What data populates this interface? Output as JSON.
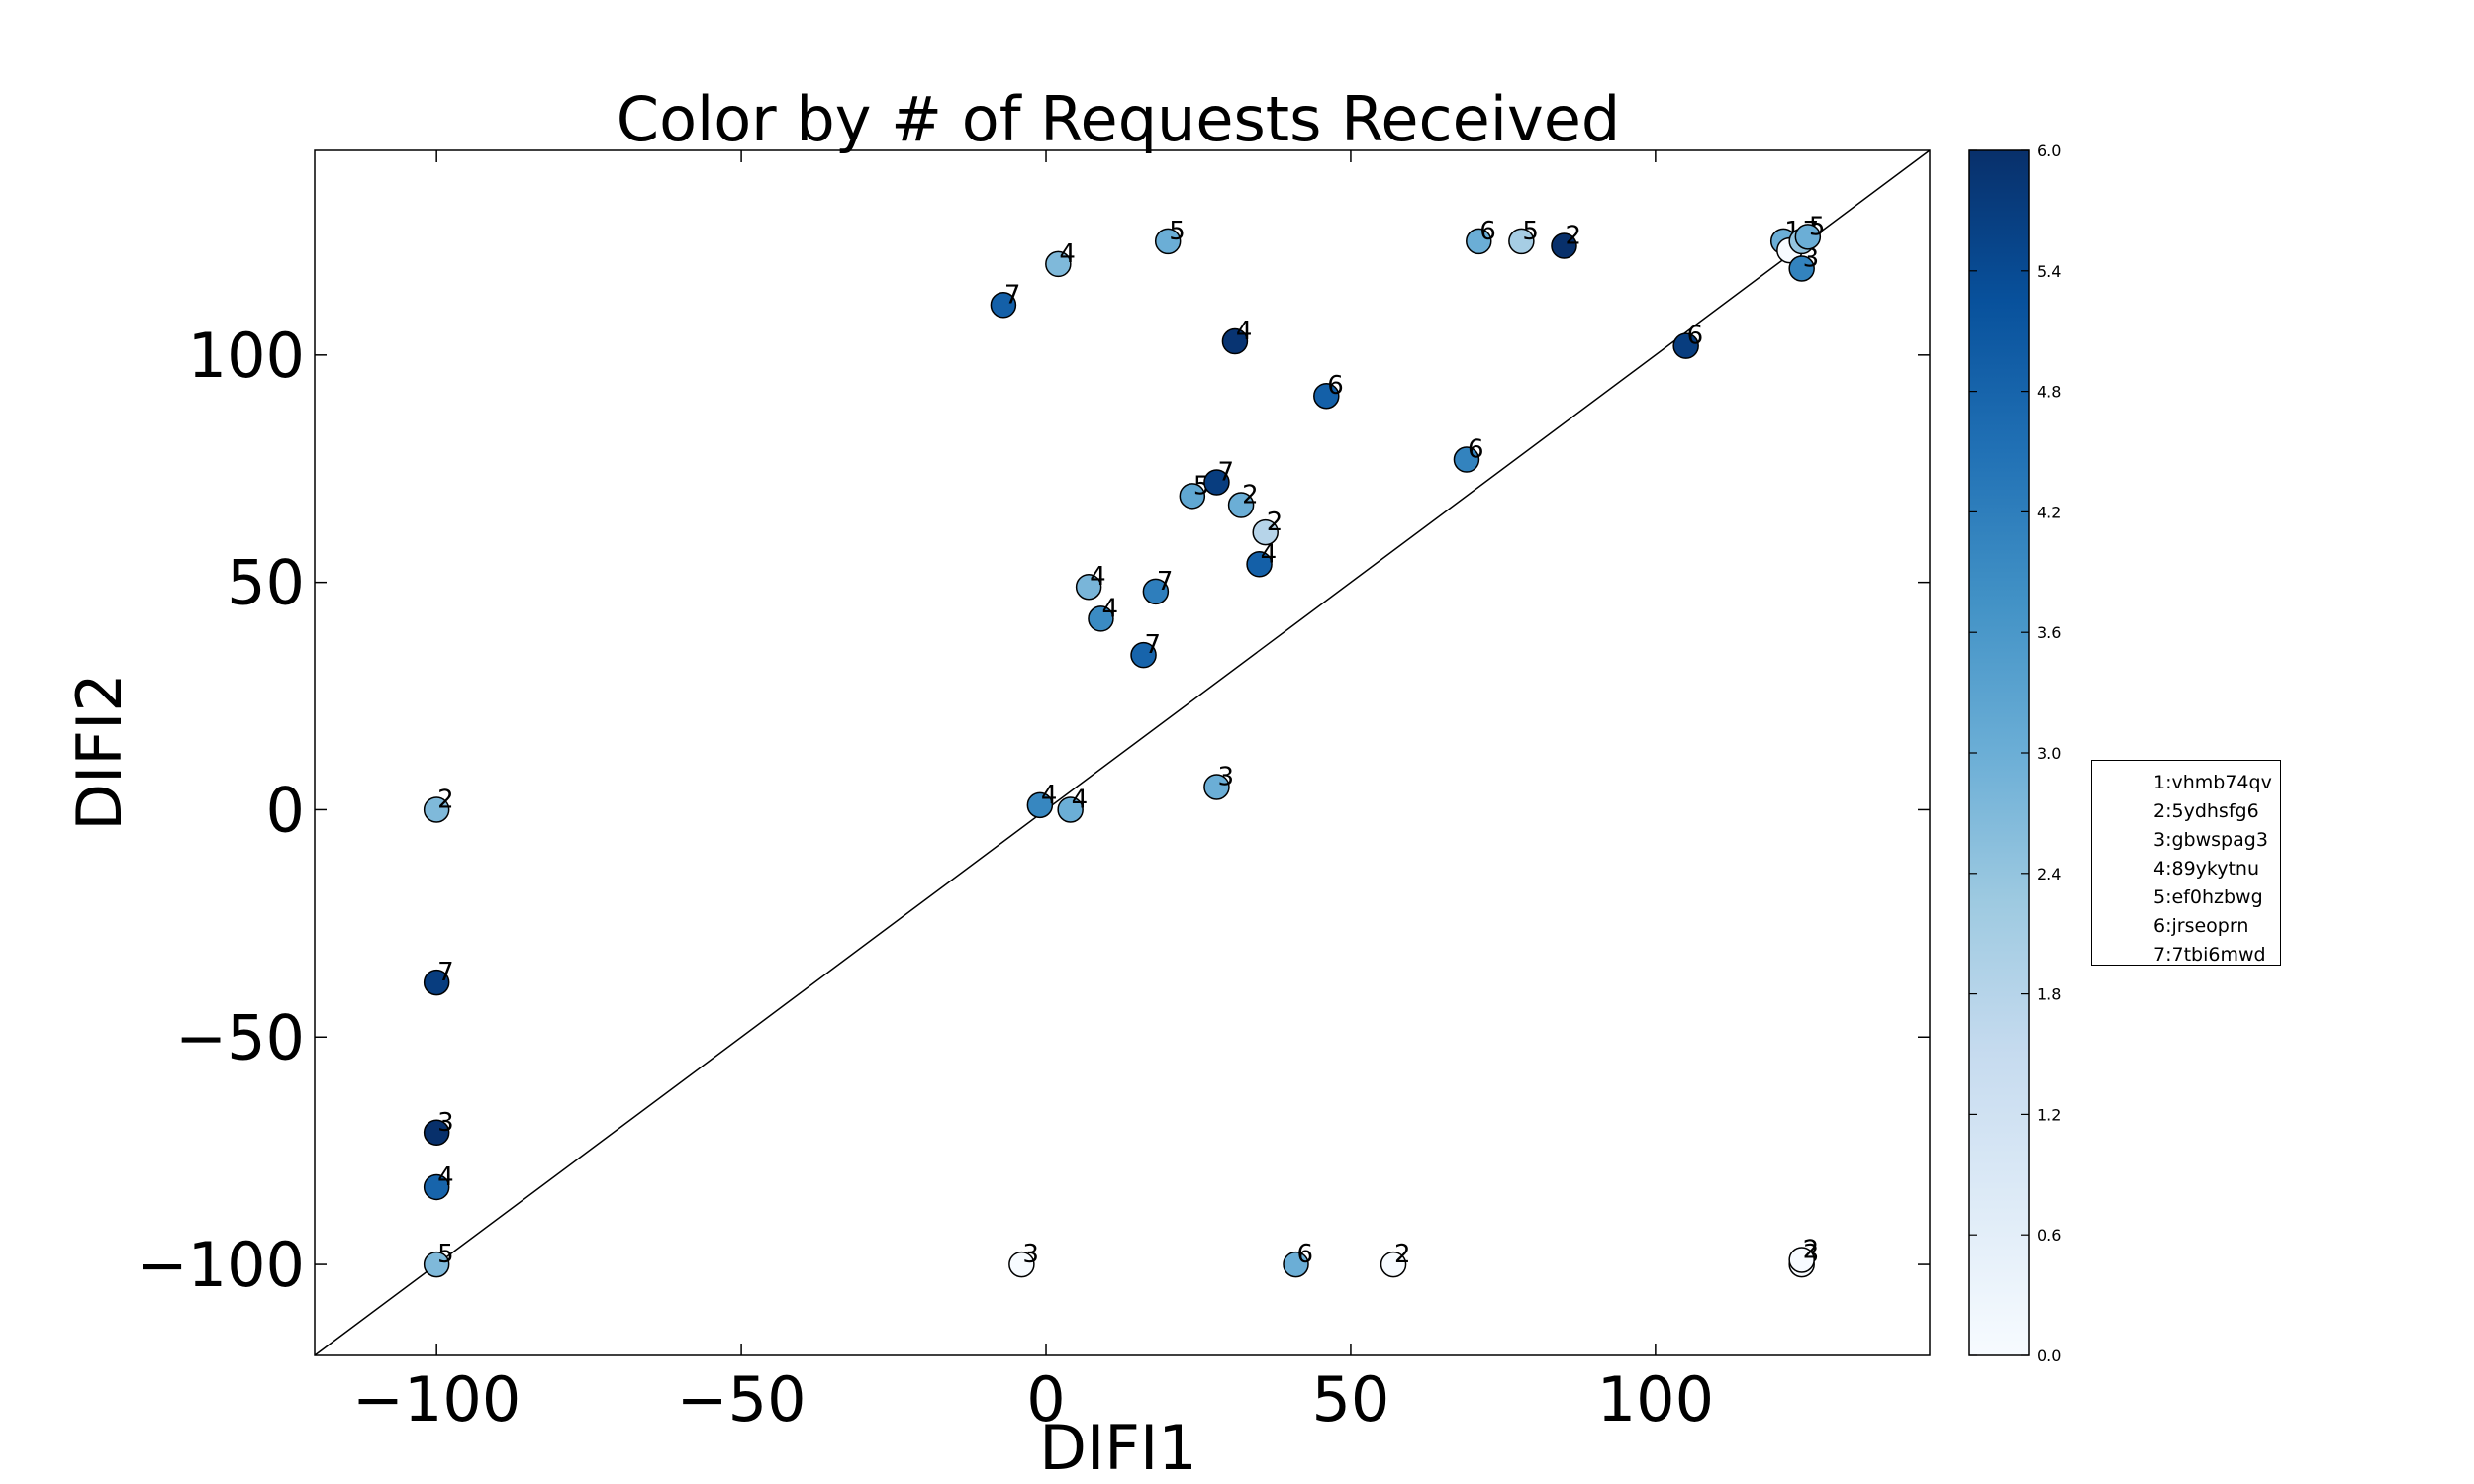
{
  "chart_data": {
    "type": "scatter",
    "title": "Color by # of Requests Received",
    "xlabel": "DIFI1",
    "ylabel": "DIFI2",
    "xlim": [
      -120,
      145
    ],
    "ylim": [
      -120,
      145
    ],
    "x_ticks": [
      -100,
      -50,
      0,
      50,
      100
    ],
    "x_tick_labels": [
      "−100",
      "−50",
      "0",
      "50",
      "100"
    ],
    "y_ticks": [
      -100,
      -50,
      0,
      50,
      100
    ],
    "y_tick_labels": [
      "−100",
      "−50",
      "0",
      "50",
      "100"
    ],
    "reference_line": "y = x",
    "grid": false,
    "colorbar": {
      "min": 0.0,
      "max": 6.0,
      "colormap": "Blues",
      "ticks": [
        0.0,
        0.6,
        1.2,
        1.8,
        2.4,
        3.0,
        3.6,
        4.2,
        4.8,
        5.4,
        6.0
      ],
      "tick_labels": [
        "0.0",
        "0.6",
        "1.2",
        "1.8",
        "2.4",
        "3.0",
        "3.6",
        "4.2",
        "4.8",
        "5.4",
        "6.0"
      ]
    },
    "legend": {
      "placement": "right",
      "entries": [
        "1:vhmb74qv",
        "2:5ydhsfg6",
        "3:gbwspag3",
        "4:89ykytnu",
        "5:ef0hzbwg",
        "6:jrseoprn",
        "7:7tbi6mwd"
      ]
    },
    "points": [
      {
        "x": -100,
        "y": 0,
        "label": "2",
        "c": 2.7
      },
      {
        "x": -100,
        "y": -38,
        "label": "7",
        "c": 5.7
      },
      {
        "x": -100,
        "y": -71,
        "label": "3",
        "c": 6.0
      },
      {
        "x": -100,
        "y": -83,
        "label": "4",
        "c": 4.8
      },
      {
        "x": -100,
        "y": -100,
        "label": "5",
        "c": 2.7
      },
      {
        "x": -4,
        "y": -100,
        "label": "3",
        "c": 0.0
      },
      {
        "x": 41,
        "y": -100,
        "label": "6",
        "c": 3.0
      },
      {
        "x": 57,
        "y": -100,
        "label": "2",
        "c": 0.0
      },
      {
        "x": 124,
        "y": -100,
        "label": "3",
        "c": 0.0
      },
      {
        "x": 124,
        "y": -99,
        "label": "2",
        "c": 0.0
      },
      {
        "x": -1,
        "y": 1,
        "label": "4",
        "c": 4.0
      },
      {
        "x": 4,
        "y": 0,
        "label": "4",
        "c": 3.0
      },
      {
        "x": 28,
        "y": 5,
        "label": "3",
        "c": 3.0
      },
      {
        "x": 16,
        "y": 34,
        "label": "7",
        "c": 4.8
      },
      {
        "x": 9,
        "y": 42,
        "label": "4",
        "c": 3.9
      },
      {
        "x": 7,
        "y": 49,
        "label": "4",
        "c": 2.8
      },
      {
        "x": 18,
        "y": 48,
        "label": "7",
        "c": 4.2
      },
      {
        "x": 35,
        "y": 54,
        "label": "4",
        "c": 4.9
      },
      {
        "x": 36,
        "y": 61,
        "label": "2",
        "c": 1.8
      },
      {
        "x": 32,
        "y": 67,
        "label": "2",
        "c": 3.0
      },
      {
        "x": 24,
        "y": 69,
        "label": "5",
        "c": 3.2
      },
      {
        "x": 28,
        "y": 72,
        "label": "7",
        "c": 5.7
      },
      {
        "x": 69,
        "y": 77,
        "label": "6",
        "c": 4.1
      },
      {
        "x": 46,
        "y": 91,
        "label": "6",
        "c": 4.9
      },
      {
        "x": 31,
        "y": 103,
        "label": "4",
        "c": 5.9
      },
      {
        "x": -7,
        "y": 111,
        "label": "7",
        "c": 4.9
      },
      {
        "x": 2,
        "y": 120,
        "label": "4",
        "c": 2.7
      },
      {
        "x": 20,
        "y": 125,
        "label": "5",
        "c": 3.0
      },
      {
        "x": 71,
        "y": 125,
        "label": "6",
        "c": 3.0
      },
      {
        "x": 78,
        "y": 125,
        "label": "5",
        "c": 2.1
      },
      {
        "x": 85,
        "y": 124,
        "label": "2",
        "c": 6.0
      },
      {
        "x": 105,
        "y": 102,
        "label": "6",
        "c": 5.7
      },
      {
        "x": 121,
        "y": 125,
        "label": "1",
        "c": 3.0
      },
      {
        "x": 122,
        "y": 123,
        "label": "6",
        "c": 0.0
      },
      {
        "x": 124,
        "y": 119,
        "label": "3",
        "c": 4.1
      },
      {
        "x": 124,
        "y": 125,
        "label": "7",
        "c": 2.4
      },
      {
        "x": 125,
        "y": 126,
        "label": "5",
        "c": 3.0
      }
    ]
  }
}
